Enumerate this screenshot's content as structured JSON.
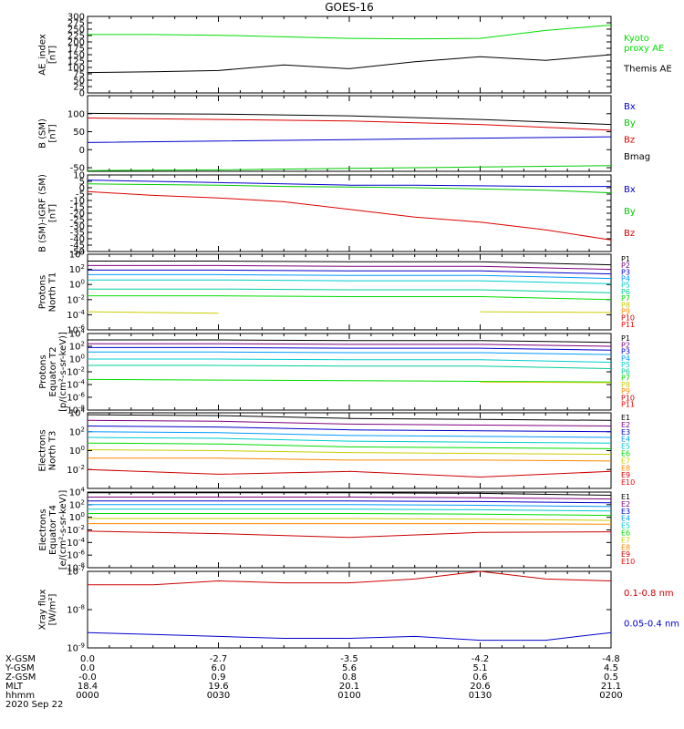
{
  "title": "GOES-16",
  "footer": {
    "row_labels": [
      "X-GSM",
      "Y-GSM",
      "Z-GSM",
      "MLT",
      "hhmm",
      "2020 Sep 22"
    ],
    "columns": [
      {
        "x_gsm": "0.0",
        "y_gsm": "0.0",
        "z_gsm": "-0.0",
        "mlt": "18.4",
        "hhmm": "0000"
      },
      {
        "x_gsm": "-2.7",
        "y_gsm": "6.0",
        "z_gsm": "0.9",
        "mlt": "19.6",
        "hhmm": "0030"
      },
      {
        "x_gsm": "-3.5",
        "y_gsm": "5.6",
        "z_gsm": "0.8",
        "mlt": "20.1",
        "hhmm": "0100"
      },
      {
        "x_gsm": "-4.2",
        "y_gsm": "5.1",
        "z_gsm": "0.6",
        "mlt": "20.6",
        "hhmm": "0130"
      },
      {
        "x_gsm": "-4.8",
        "y_gsm": "4.5",
        "z_gsm": "0.5",
        "mlt": "21.1",
        "hhmm": "0200"
      }
    ]
  },
  "chart_data": [
    {
      "type": "line",
      "ylabel": [
        "AE_index",
        "[nT]"
      ],
      "scale": "linear",
      "ylim": [
        0,
        300
      ],
      "yticks": [
        0,
        25,
        50,
        75,
        100,
        125,
        150,
        175,
        200,
        225,
        250,
        275,
        300
      ],
      "ytick_labels": [
        "0",
        "25",
        "50",
        "75",
        "100",
        "125",
        "150",
        "175",
        "200",
        "225",
        "250",
        "275",
        "300"
      ],
      "x_hours": [
        0,
        0.25,
        0.5,
        0.75,
        1.0,
        1.25,
        1.5,
        1.75,
        2.0
      ],
      "series": [
        {
          "name": "Kyoto proxy AE",
          "legend": [
            "Kyoto",
            "proxy AE"
          ],
          "color": "#00dd00",
          "values": [
            229,
            229,
            226,
            220,
            214,
            212,
            214,
            245,
            266
          ]
        },
        {
          "name": "Themis AE",
          "legend": [
            "Themis AE"
          ],
          "color": "#000000",
          "values": [
            80,
            83,
            88,
            110,
            95,
            122,
            142,
            128,
            150
          ]
        }
      ]
    },
    {
      "type": "line",
      "ylabel": [
        "B (SM)",
        "[nT]"
      ],
      "scale": "linear",
      "ylim": [
        -60,
        150
      ],
      "yticks": [
        -50,
        0,
        50,
        100
      ],
      "ytick_labels": [
        "-50",
        "0",
        "50",
        "100"
      ],
      "x_hours": [
        0,
        0.5,
        1.0,
        1.5,
        2.0
      ],
      "series": [
        {
          "name": "Bx",
          "legend": [
            "Bx"
          ],
          "color": "#0000cc",
          "values": [
            20,
            24,
            28,
            32,
            36
          ]
        },
        {
          "name": "By",
          "legend": [
            "By"
          ],
          "color": "#00cc00",
          "values": [
            -58,
            -56,
            -52,
            -48,
            -44
          ]
        },
        {
          "name": "Bz",
          "legend": [
            "Bz"
          ],
          "color": "#dd0000",
          "values": [
            88,
            84,
            80,
            70,
            54
          ]
        },
        {
          "name": "Bmag",
          "legend": [
            "Bmag"
          ],
          "color": "#000000",
          "values": [
            101,
            99,
            94,
            84,
            70
          ]
        }
      ]
    },
    {
      "type": "line",
      "ylabel": [
        "B (SM)-IGRF (SM)",
        "[nT]"
      ],
      "scale": "linear",
      "ylim": [
        -50,
        10
      ],
      "yticks": [
        -50,
        -45,
        -40,
        -35,
        -30,
        -25,
        -20,
        -15,
        -10,
        -5,
        0,
        5,
        10
      ],
      "ytick_labels": [
        "-50",
        "-45",
        "-40",
        "-35",
        "-30",
        "-25",
        "-20",
        "-15",
        "-10",
        "-5",
        "0",
        "5",
        "10"
      ],
      "x_hours": [
        0,
        0.25,
        0.5,
        0.75,
        1.0,
        1.25,
        1.5,
        1.75,
        2.0
      ],
      "series": [
        {
          "name": "Bx",
          "legend": [
            "Bx"
          ],
          "color": "#0000cc",
          "values": [
            6,
            5,
            4,
            3,
            2,
            2,
            1.5,
            1,
            1
          ]
        },
        {
          "name": "By",
          "legend": [
            "By"
          ],
          "color": "#00cc00",
          "values": [
            3,
            2.5,
            2,
            1,
            0.5,
            0,
            -1,
            -2,
            -4
          ]
        },
        {
          "name": "Bz",
          "legend": [
            "Bz"
          ],
          "color": "#dd0000",
          "values": [
            -3,
            -6,
            -8,
            -11,
            -17,
            -23,
            -27,
            -33,
            -41
          ]
        }
      ]
    },
    {
      "type": "line",
      "ylabel": [
        "Protons",
        "North T1"
      ],
      "scale": "log",
      "ylim_log10": [
        -6,
        4
      ],
      "yticks": [
        -6,
        -4,
        -2,
        0,
        2,
        4
      ],
      "x_hours": [
        0,
        0.5,
        1.0,
        1.5,
        2.0
      ],
      "series": [
        {
          "name": "P1",
          "color": "#000000",
          "values_log10": [
            3.1,
            3.1,
            3.0,
            3.0,
            2.6
          ]
        },
        {
          "name": "P2",
          "color": "#7f007f",
          "values_log10": [
            2.5,
            2.5,
            2.4,
            2.4,
            2.0
          ]
        },
        {
          "name": "P3",
          "color": "#0000cc",
          "values_log10": [
            1.9,
            1.9,
            1.8,
            1.8,
            1.4
          ]
        },
        {
          "name": "P4",
          "color": "#0099ff",
          "values_log10": [
            1.3,
            1.3,
            1.2,
            1.2,
            0.8
          ]
        },
        {
          "name": "P5",
          "color": "#00cccc",
          "values_log10": [
            0.6,
            0.6,
            0.5,
            0.5,
            0.1
          ]
        },
        {
          "name": "P6",
          "color": "#00cc99",
          "values_log10": [
            -0.6,
            -0.6,
            -0.7,
            -0.7,
            -1.1
          ]
        },
        {
          "name": "P7",
          "color": "#00dd00",
          "values_log10": [
            -1.5,
            -1.5,
            -1.6,
            -1.6,
            -2.0
          ]
        },
        {
          "name": "P8",
          "color": "#cccc00",
          "values_log10": [
            -3.6,
            -3.8,
            null,
            -3.6,
            -3.7
          ]
        },
        {
          "name": "P9",
          "color": "#ff8800",
          "values_log10": [
            null,
            null,
            null,
            -4.5,
            null
          ]
        },
        {
          "name": "P10",
          "color": "#cc0000",
          "values_log10": []
        },
        {
          "name": "P11",
          "color": "#ff0000",
          "values_log10": []
        }
      ]
    },
    {
      "type": "line",
      "ylabel": [
        "Protons",
        "Equator T2",
        "[p/(cm²-s-sr-keV)]"
      ],
      "scale": "log",
      "ylim_log10": [
        -8,
        4
      ],
      "yticks": [
        -8,
        -6,
        -4,
        -2,
        0,
        2,
        4
      ],
      "x_hours": [
        0,
        0.5,
        1.0,
        1.5,
        2.0
      ],
      "series": [
        {
          "name": "P1",
          "color": "#000000",
          "values_log10": [
            3.0,
            3.0,
            2.9,
            2.9,
            2.6
          ]
        },
        {
          "name": "P2",
          "color": "#7f007f",
          "values_log10": [
            2.4,
            2.4,
            2.3,
            2.3,
            2.0
          ]
        },
        {
          "name": "P3",
          "color": "#0000cc",
          "values_log10": [
            1.8,
            1.8,
            1.7,
            1.7,
            1.4
          ]
        },
        {
          "name": "P4",
          "color": "#0099ff",
          "values_log10": [
            1.1,
            1.1,
            1.0,
            1.0,
            0.7
          ]
        },
        {
          "name": "P5",
          "color": "#00cccc",
          "values_log10": [
            0.0,
            0.0,
            -0.1,
            -0.1,
            -0.5
          ]
        },
        {
          "name": "P6",
          "color": "#00cc99",
          "values_log10": [
            -1.0,
            -1.0,
            -1.1,
            -1.1,
            -1.5
          ]
        },
        {
          "name": "P7",
          "color": "#00dd00",
          "values_log10": [
            -3.2,
            -3.3,
            -3.4,
            -3.5,
            -3.6
          ]
        },
        {
          "name": "P8",
          "color": "#cccc00",
          "values_log10": [
            null,
            null,
            null,
            -3.6,
            -3.7
          ]
        },
        {
          "name": "P9",
          "color": "#ff8800",
          "values_log10": []
        },
        {
          "name": "P10",
          "color": "#cc0000",
          "values_log10": [
            null,
            null,
            null,
            -5.0,
            null
          ]
        },
        {
          "name": "P11",
          "color": "#ff0000",
          "values_log10": []
        }
      ]
    },
    {
      "type": "line",
      "ylabel": [
        "Electrons",
        "North T3"
      ],
      "scale": "log",
      "ylim_log10": [
        -4,
        4
      ],
      "yticks": [
        -2,
        0,
        2,
        4
      ],
      "x_hours": [
        0,
        0.5,
        1.0,
        1.5,
        2.0
      ],
      "series": [
        {
          "name": "E1",
          "color": "#000000",
          "values_log10": [
            3.8,
            3.7,
            3.4,
            3.3,
            3.2
          ]
        },
        {
          "name": "E2",
          "color": "#7f007f",
          "values_log10": [
            3.2,
            3.1,
            2.8,
            2.7,
            2.6
          ]
        },
        {
          "name": "E3",
          "color": "#0000cc",
          "values_log10": [
            2.6,
            2.5,
            2.2,
            2.1,
            2.0
          ]
        },
        {
          "name": "E4",
          "color": "#0099ff",
          "values_log10": [
            2.0,
            1.9,
            1.6,
            1.5,
            1.4
          ]
        },
        {
          "name": "E5",
          "color": "#00cccc",
          "values_log10": [
            1.4,
            1.3,
            1.0,
            0.9,
            0.8
          ]
        },
        {
          "name": "E6",
          "color": "#00dd00",
          "values_log10": [
            0.8,
            0.7,
            0.4,
            0.3,
            0.2
          ]
        },
        {
          "name": "E7",
          "color": "#cccc00",
          "values_log10": [
            0.1,
            0.0,
            -0.2,
            -0.3,
            -0.4
          ]
        },
        {
          "name": "E8",
          "color": "#ff8800",
          "values_log10": [
            -0.8,
            -0.8,
            -1.0,
            -1.0,
            -1.1
          ]
        },
        {
          "name": "E9",
          "color": "#cc0000",
          "values_log10": [
            -2.0,
            -2.5,
            -2.2,
            -2.8,
            -2.2
          ]
        },
        {
          "name": "E10",
          "color": "#ff0000",
          "values_log10": []
        }
      ]
    },
    {
      "type": "line",
      "ylabel": [
        "Electrons",
        "Equator T4",
        "[e/(cm²-s-sr-keV)]"
      ],
      "scale": "log",
      "ylim_log10": [
        -8,
        4
      ],
      "yticks": [
        -8,
        -6,
        -4,
        -2,
        0,
        2,
        4
      ],
      "x_hours": [
        0,
        0.5,
        1.0,
        1.5,
        2.0
      ],
      "series": [
        {
          "name": "E1",
          "color": "#000000",
          "values_log10": [
            3.9,
            3.9,
            3.9,
            3.8,
            3.5
          ]
        },
        {
          "name": "E2",
          "color": "#7f007f",
          "values_log10": [
            3.2,
            3.2,
            3.2,
            3.1,
            2.9
          ]
        },
        {
          "name": "E3",
          "color": "#0000cc",
          "values_log10": [
            2.6,
            2.6,
            2.6,
            2.5,
            2.3
          ]
        },
        {
          "name": "E4",
          "color": "#0099ff",
          "values_log10": [
            2.0,
            2.0,
            2.0,
            1.9,
            1.7
          ]
        },
        {
          "name": "E5",
          "color": "#00cccc",
          "values_log10": [
            1.3,
            1.3,
            1.3,
            1.2,
            1.0
          ]
        },
        {
          "name": "E6",
          "color": "#00dd00",
          "values_log10": [
            0.6,
            0.6,
            0.6,
            0.5,
            0.3
          ]
        },
        {
          "name": "E7",
          "color": "#cccc00",
          "values_log10": [
            -0.2,
            -0.2,
            -0.2,
            -0.3,
            -0.5
          ]
        },
        {
          "name": "E8",
          "color": "#ff8800",
          "values_log10": [
            -1.0,
            -1.0,
            -1.0,
            -1.0,
            -1.1
          ]
        },
        {
          "name": "E9",
          "color": "#cc0000",
          "values_log10": [
            -2.2,
            -2.6,
            -3.2,
            -2.4,
            -2.3
          ]
        },
        {
          "name": "E10",
          "color": "#ff0000",
          "values_log10": []
        }
      ]
    },
    {
      "type": "line",
      "ylabel": [
        "Xray flux",
        "[W/m²]"
      ],
      "scale": "log",
      "ylim_log10": [
        -9,
        -7
      ],
      "yticks": [
        -9,
        -8,
        -7
      ],
      "x_hours": [
        0,
        0.25,
        0.5,
        0.75,
        1.0,
        1.25,
        1.5,
        1.75,
        2.0
      ],
      "series": [
        {
          "name": "0.1-0.8 nm",
          "legend": [
            "0.1-0.8 nm"
          ],
          "color": "#cc0000",
          "values_log10": [
            -7.35,
            -7.35,
            -7.25,
            -7.3,
            -7.3,
            -7.2,
            -7.0,
            -7.2,
            -7.25
          ]
        },
        {
          "name": "0.05-0.4 nm",
          "legend": [
            "0.05-0.4 nm"
          ],
          "color": "#0000cc",
          "values_log10": [
            -8.6,
            -8.65,
            -8.7,
            -8.75,
            -8.75,
            -8.7,
            -8.8,
            -8.8,
            -8.6
          ]
        }
      ]
    }
  ]
}
